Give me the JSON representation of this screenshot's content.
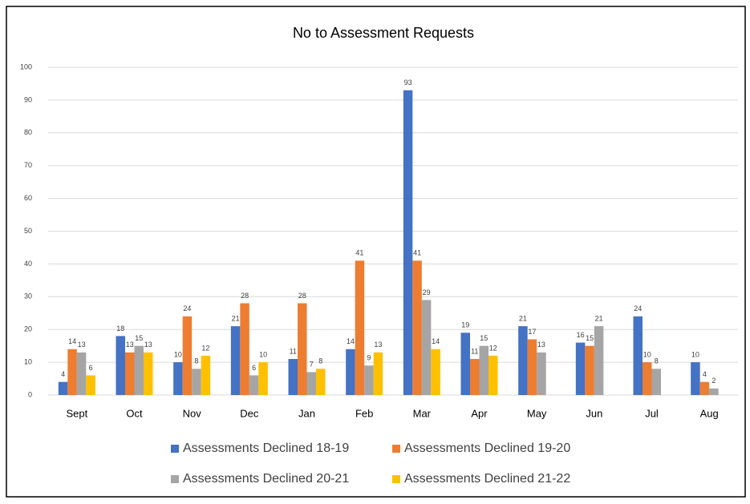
{
  "chart_data": {
    "type": "bar",
    "title": "No to Assessment Requests",
    "categories": [
      "Sept",
      "Oct",
      "Nov",
      "Dec",
      "Jan",
      "Feb",
      "Mar",
      "Apr",
      "May",
      "Jun",
      "Jul",
      "Aug"
    ],
    "series": [
      {
        "name": "Assessments Declined 18-19",
        "color": "#4472c4",
        "values": [
          4,
          18,
          10,
          21,
          11,
          14,
          93,
          19,
          21,
          16,
          24,
          10
        ]
      },
      {
        "name": "Assessments Declined 19-20",
        "color": "#ed7d31",
        "values": [
          14,
          13,
          24,
          28,
          28,
          41,
          41,
          11,
          17,
          15,
          10,
          4
        ]
      },
      {
        "name": "Assessments Declined 20-21",
        "color": "#a5a5a5",
        "values": [
          13,
          15,
          8,
          6,
          7,
          9,
          29,
          15,
          13,
          21,
          8,
          2
        ]
      },
      {
        "name": "Assessments Declined 21-22",
        "color": "#ffc000",
        "values": [
          6,
          13,
          12,
          10,
          8,
          13,
          14,
          12,
          null,
          null,
          null,
          null
        ]
      }
    ],
    "ylim": [
      0,
      100
    ],
    "yticks": [
      0,
      10,
      20,
      30,
      40,
      50,
      60,
      70,
      80,
      90,
      100
    ],
    "grid": true
  }
}
